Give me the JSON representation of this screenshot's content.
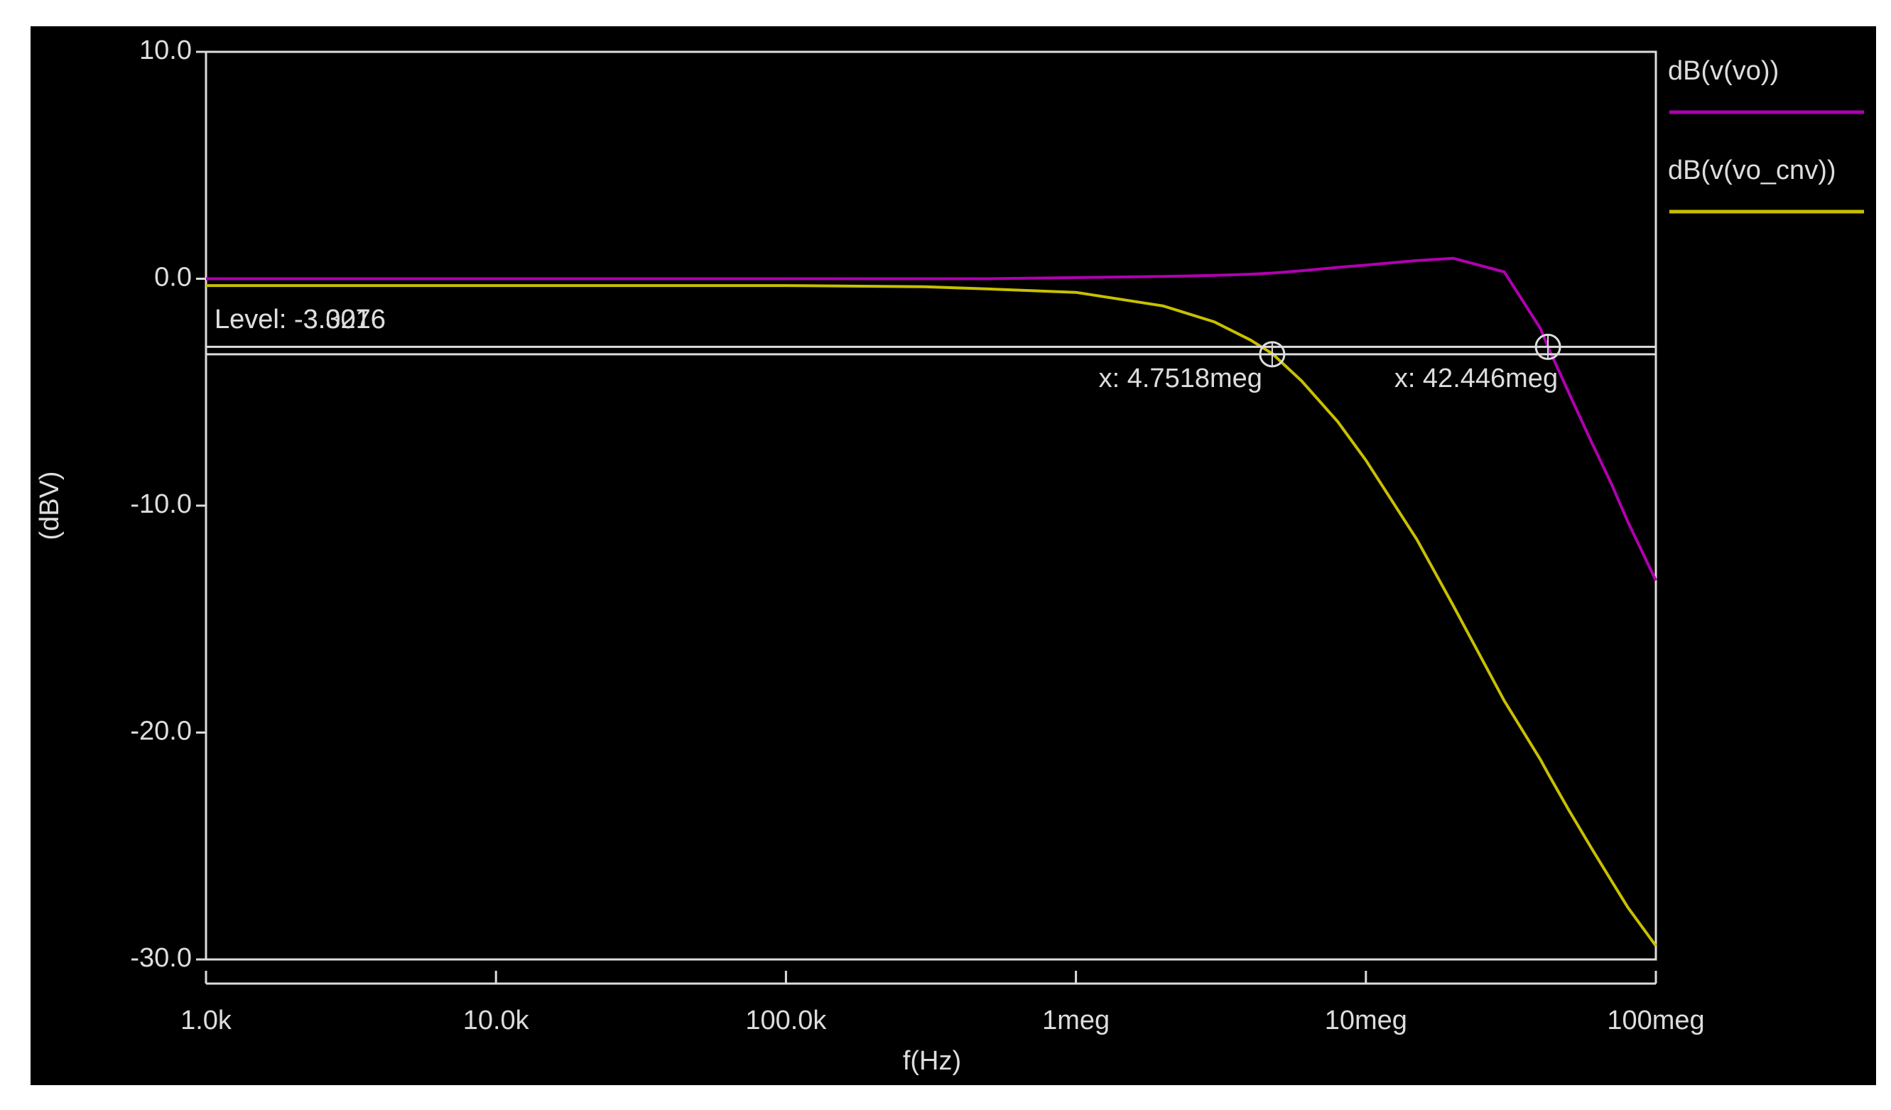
{
  "chart_data": {
    "type": "line",
    "x_label": "f(Hz)",
    "y_label": "(dBV)",
    "x_log": true,
    "xlim": [
      1000,
      100000000
    ],
    "xticks": [
      {
        "value": 1000,
        "label": "1.0k"
      },
      {
        "value": 10000,
        "label": "10.0k"
      },
      {
        "value": 100000,
        "label": "100.0k"
      },
      {
        "value": 1000000,
        "label": "1meg"
      },
      {
        "value": 10000000,
        "label": "10meg"
      },
      {
        "value": 100000000,
        "label": "100meg"
      }
    ],
    "ylim": [
      -30,
      10
    ],
    "yticks": [
      {
        "value": -30,
        "label": "-30.0"
      },
      {
        "value": -20,
        "label": "-20.0"
      },
      {
        "value": -10,
        "label": "-10.0"
      },
      {
        "value": 0,
        "label": "0.0"
      },
      {
        "value": 10,
        "label": "10.0"
      }
    ],
    "legend": "right",
    "x": [
      1000,
      3000,
      10000,
      30000,
      100000,
      300000,
      500000,
      1000000,
      2000000,
      3000000,
      4000000,
      4751800,
      6000000,
      8000000,
      10000000,
      15000000,
      20000000,
      30000000,
      40000000,
      42446000,
      50000000,
      60000000,
      70000000,
      80000000,
      100000000
    ],
    "series": [
      {
        "name": "dB(v(vo))",
        "color": "#b000b0",
        "values": [
          0,
          0,
          0,
          0,
          0,
          0,
          0,
          0.05,
          0.1,
          0.15,
          0.2,
          0.25,
          0.35,
          0.5,
          0.6,
          0.8,
          0.9,
          0.3,
          -2.2,
          -3.0,
          -5.0,
          -7.2,
          -9.0,
          -10.7,
          -13.3
        ]
      },
      {
        "name": "dB(v(vo_cnv))",
        "color": "#c8c000",
        "values": [
          -0.3,
          -0.3,
          -0.3,
          -0.3,
          -0.3,
          -0.35,
          -0.45,
          -0.6,
          -1.2,
          -1.9,
          -2.7,
          -3.3,
          -4.5,
          -6.3,
          -8.0,
          -11.5,
          -14.4,
          -18.6,
          -21.2,
          -21.8,
          -23.4,
          -25.1,
          -26.5,
          -27.7,
          -29.4
        ]
      }
    ],
    "cursors": [
      {
        "x": 4751800,
        "x_label": "x: 4.7518meg",
        "level": -3.3276,
        "level_label": "Level: -3.3276"
      },
      {
        "x": 42446000,
        "x_label": "x: 42.446meg",
        "level": -3.0016,
        "level_label": "Level: -3.0016"
      }
    ]
  }
}
